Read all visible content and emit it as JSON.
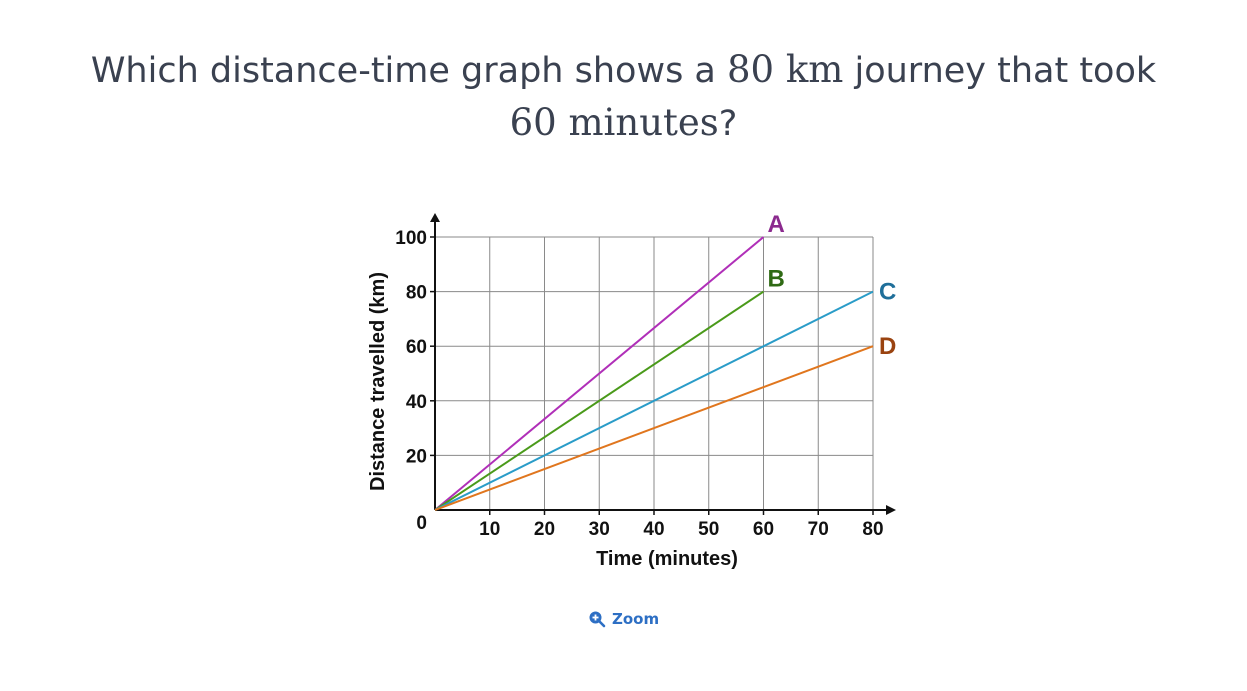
{
  "question": {
    "prefix": "Which distance-time graph shows a ",
    "distance_math": "80 km",
    "middle": " journey that took",
    "time_math": "60 minutes",
    "suffix": "?"
  },
  "zoom": {
    "label": "Zoom",
    "icon": "zoom-in-icon"
  },
  "chart_data": {
    "type": "line",
    "xlabel": "Time (minutes)",
    "ylabel": "Distance travelled (km)",
    "xlim": [
      0,
      80
    ],
    "ylim": [
      0,
      100
    ],
    "xticks": [
      10,
      20,
      30,
      40,
      50,
      60,
      70,
      80
    ],
    "yticks": [
      20,
      40,
      60,
      80,
      100
    ],
    "origin_label": "0",
    "grid": true,
    "series": [
      {
        "name": "A",
        "color": "#b02fb8",
        "label_color": "#8b2a8e",
        "x": [
          0,
          60
        ],
        "y": [
          0,
          100
        ]
      },
      {
        "name": "B",
        "color": "#4a9a1a",
        "label_color": "#2f6a14",
        "x": [
          0,
          60
        ],
        "y": [
          0,
          80
        ]
      },
      {
        "name": "C",
        "color": "#2a9cc8",
        "label_color": "#1f6f9a",
        "x": [
          0,
          80
        ],
        "y": [
          0,
          80
        ]
      },
      {
        "name": "D",
        "color": "#e0761e",
        "label_color": "#9a4310",
        "x": [
          0,
          80
        ],
        "y": [
          0,
          60
        ]
      }
    ]
  }
}
